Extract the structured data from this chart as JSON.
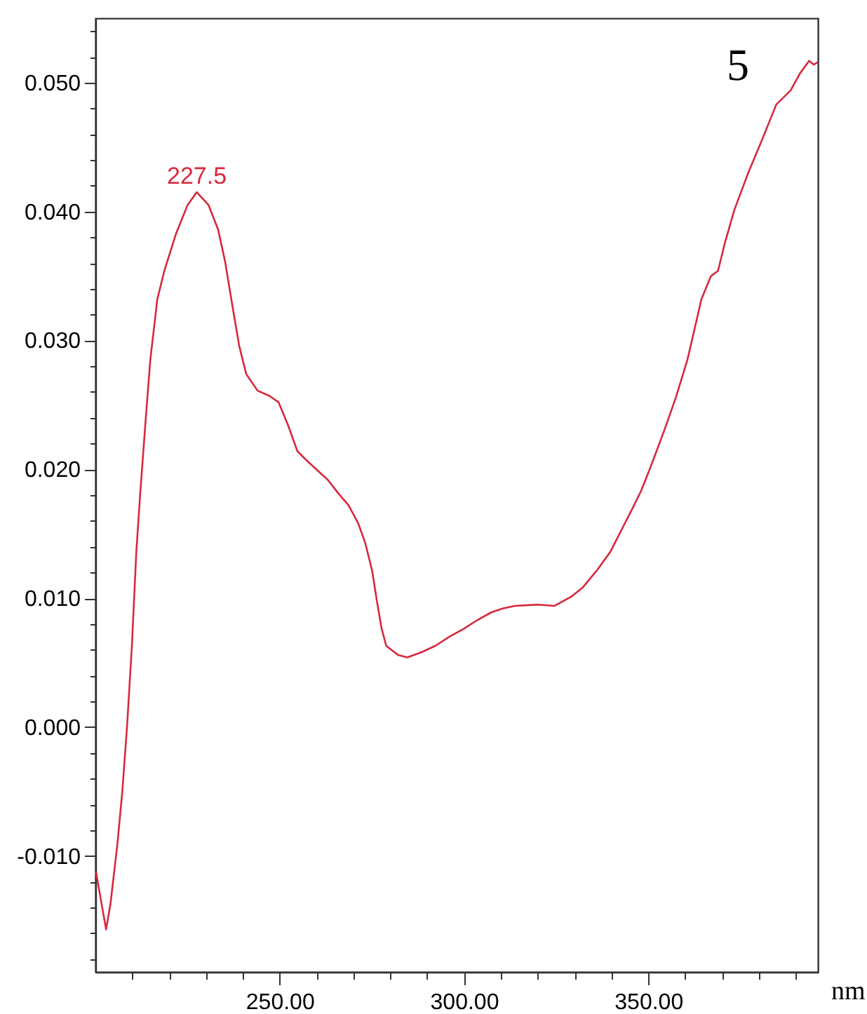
{
  "chart_data": {
    "type": "line",
    "xlabel": "nm",
    "color": "#d8283c",
    "annotations": [
      "5",
      {
        "text": "227.5",
        "x": 227.5,
        "y": 0.0415
      }
    ],
    "x": [
      200.2,
      202.9,
      204.1,
      206.0,
      207.3,
      208.6,
      209.9,
      211.1,
      212.2,
      213.6,
      214.9,
      216.8,
      218.7,
      221.9,
      225.0,
      227.5,
      230.7,
      233.3,
      235.2,
      237.1,
      239.0,
      240.9,
      244.0,
      247.2,
      249.7,
      252.3,
      254.8,
      258.0,
      263.0,
      266.0,
      268.7,
      271.3,
      273.2,
      275.1,
      276.3,
      277.6,
      278.9,
      282.1,
      284.6,
      288.4,
      292.2,
      296.0,
      299.8,
      303.6,
      307.4,
      310.5,
      313.8,
      320.1,
      324.5,
      329.0,
      332.1,
      335.9,
      339.7,
      342.9,
      345.4,
      348.0,
      350.5,
      354.3,
      357.5,
      360.6,
      363.2,
      364.4,
      367.0,
      368.9,
      370.8,
      373.3,
      377.1,
      380.9,
      384.7,
      388.6,
      391.1,
      393.6,
      394.9,
      396.0
    ],
    "values": [
      -0.0113,
      -0.0157,
      -0.0137,
      -0.009,
      -0.005,
      0.0001,
      0.0063,
      0.0136,
      0.0183,
      0.0237,
      0.0285,
      0.0332,
      0.0354,
      0.0383,
      0.0405,
      0.0415,
      0.0405,
      0.0386,
      0.0361,
      0.0328,
      0.0296,
      0.0274,
      0.0261,
      0.0257,
      0.0252,
      0.0234,
      0.0214,
      0.0205,
      0.0192,
      0.0181,
      0.0172,
      0.0158,
      0.0143,
      0.0121,
      0.0099,
      0.0077,
      0.0063,
      0.0056,
      0.0054,
      0.0058,
      0.0063,
      0.007,
      0.0076,
      0.0083,
      0.0089,
      0.0092,
      0.0094,
      0.0095,
      0.0094,
      0.0101,
      0.0108,
      0.0121,
      0.0136,
      0.0154,
      0.0168,
      0.0183,
      0.0201,
      0.023,
      0.0256,
      0.0285,
      0.0317,
      0.0332,
      0.035,
      0.0354,
      0.0376,
      0.0401,
      0.043,
      0.0456,
      0.0483,
      0.0494,
      0.0507,
      0.0517,
      0.0514,
      0.0516
    ],
    "xlim": [
      200,
      396
    ],
    "ylim": [
      -0.019,
      0.055
    ],
    "xticks": [
      {
        "value": 210,
        "label": null
      },
      {
        "value": 220,
        "label": null
      },
      {
        "value": 230,
        "label": null
      },
      {
        "value": 240,
        "label": null
      },
      {
        "value": 250,
        "label": "250.00"
      },
      {
        "value": 260,
        "label": null
      },
      {
        "value": 270,
        "label": null
      },
      {
        "value": 280,
        "label": null
      },
      {
        "value": 290,
        "label": null
      },
      {
        "value": 300,
        "label": "300.00"
      },
      {
        "value": 310,
        "label": null
      },
      {
        "value": 320,
        "label": null
      },
      {
        "value": 330,
        "label": null
      },
      {
        "value": 340,
        "label": null
      },
      {
        "value": 350,
        "label": "350.00"
      },
      {
        "value": 360,
        "label": null
      },
      {
        "value": 370,
        "label": null
      },
      {
        "value": 380,
        "label": null
      },
      {
        "value": 390,
        "label": null
      }
    ],
    "yticks": [
      {
        "value": -0.018,
        "label": null
      },
      {
        "value": -0.016,
        "label": null
      },
      {
        "value": -0.014,
        "label": null
      },
      {
        "value": -0.012,
        "label": null
      },
      {
        "value": -0.01,
        "label": "-0.010"
      },
      {
        "value": -0.008,
        "label": null
      },
      {
        "value": -0.006,
        "label": null
      },
      {
        "value": -0.004,
        "label": null
      },
      {
        "value": -0.002,
        "label": null
      },
      {
        "value": 0,
        "label": "0.000"
      },
      {
        "value": 0.002,
        "label": null
      },
      {
        "value": 0.004,
        "label": null
      },
      {
        "value": 0.006,
        "label": null
      },
      {
        "value": 0.008,
        "label": null
      },
      {
        "value": 0.01,
        "label": "0.010"
      },
      {
        "value": 0.012,
        "label": null
      },
      {
        "value": 0.014,
        "label": null
      },
      {
        "value": 0.016,
        "label": null
      },
      {
        "value": 0.018,
        "label": null
      },
      {
        "value": 0.02,
        "label": "0.020"
      },
      {
        "value": 0.022,
        "label": null
      },
      {
        "value": 0.024,
        "label": null
      },
      {
        "value": 0.026,
        "label": null
      },
      {
        "value": 0.028,
        "label": null
      },
      {
        "value": 0.03,
        "label": "0.030"
      },
      {
        "value": 0.032,
        "label": null
      },
      {
        "value": 0.034,
        "label": null
      },
      {
        "value": 0.036,
        "label": null
      },
      {
        "value": 0.038,
        "label": null
      },
      {
        "value": 0.04,
        "label": "0.040"
      },
      {
        "value": 0.042,
        "label": null
      },
      {
        "value": 0.044,
        "label": null
      },
      {
        "value": 0.046,
        "label": null
      },
      {
        "value": 0.048,
        "label": null
      },
      {
        "value": 0.05,
        "label": "0.050"
      },
      {
        "value": 0.052,
        "label": null
      },
      {
        "value": 0.054,
        "label": null
      }
    ]
  }
}
